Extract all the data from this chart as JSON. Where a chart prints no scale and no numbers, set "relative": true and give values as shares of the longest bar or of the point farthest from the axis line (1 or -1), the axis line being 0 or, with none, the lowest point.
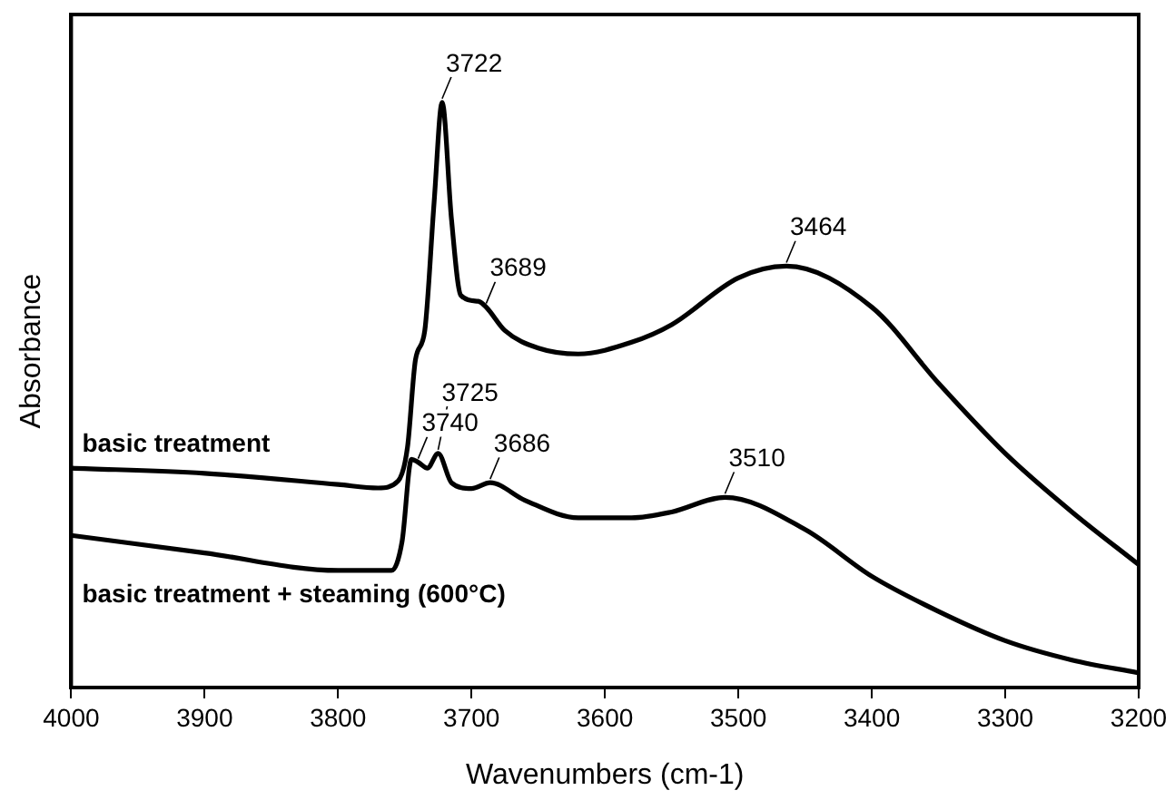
{
  "chart_data": {
    "type": "line",
    "relative": true,
    "xlabel": "Wavenumbers (cm-1)",
    "ylabel": "Absorbance",
    "xlim": [
      4000,
      3200
    ],
    "xticks": [
      4000,
      3900,
      3800,
      3700,
      3600,
      3500,
      3400,
      3300,
      3200
    ],
    "tick_labels": "x",
    "grid": false,
    "legend": false,
    "marker": "none",
    "line_style": "solid",
    "series": [
      {
        "name": "basic treatment",
        "color": "#000000",
        "x": [
          4000,
          3900,
          3800,
          3770,
          3755,
          3748,
          3742,
          3735,
          3728,
          3722,
          3715,
          3708,
          3695,
          3689,
          3675,
          3650,
          3620,
          3580,
          3550,
          3500,
          3464,
          3400,
          3350,
          3300,
          3250,
          3200
        ],
        "values": [
          0.375,
          0.366,
          0.347,
          0.341,
          0.353,
          0.41,
          0.56,
          0.61,
          0.83,
          1,
          0.8,
          0.67,
          0.66,
          0.65,
          0.61,
          0.58,
          0.57,
          0.59,
          0.62,
          0.7,
          0.72,
          0.65,
          0.52,
          0.4,
          0.3,
          0.21
        ]
      },
      {
        "name": "basic treatment + steaming (600°C)",
        "color": "#000000",
        "x": [
          4000,
          3900,
          3800,
          3760,
          3752,
          3745,
          3740,
          3733,
          3725,
          3715,
          3700,
          3686,
          3660,
          3620,
          3580,
          3550,
          3510,
          3450,
          3400,
          3350,
          3300,
          3250,
          3200
        ],
        "values": [
          0.26,
          0.23,
          0.2,
          0.2,
          0.25,
          0.39,
          0.385,
          0.375,
          0.4,
          0.35,
          0.34,
          0.35,
          0.32,
          0.29,
          0.29,
          0.3,
          0.325,
          0.27,
          0.19,
          0.13,
          0.08,
          0.047,
          0.025
        ]
      }
    ],
    "annotations": [
      {
        "text": "3722",
        "x": 3722,
        "y": 1
      },
      {
        "text": "3689",
        "x": 3689,
        "y": 0.65
      },
      {
        "text": "3464",
        "x": 3464,
        "y": 0.72
      },
      {
        "text": "3740",
        "x": 3740,
        "y": 0.385
      },
      {
        "text": "3725",
        "x": 3725,
        "y": 0.4
      },
      {
        "text": "3686",
        "x": 3686,
        "y": 0.35
      },
      {
        "text": "3510",
        "x": 3510,
        "y": 0.325
      }
    ]
  }
}
